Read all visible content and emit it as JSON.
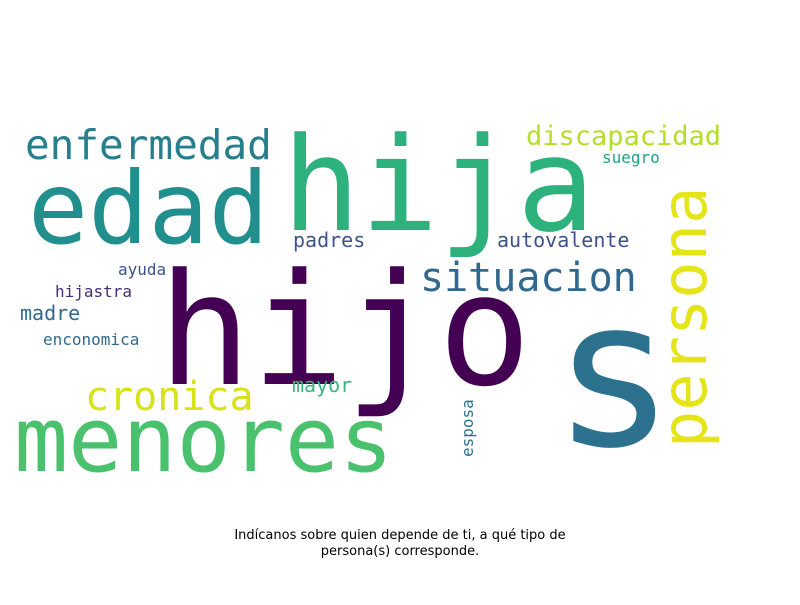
{
  "caption": {
    "line1": "Indícanos sobre quien depende de ti, a qué tipo de",
    "line2": "persona(s) corresponde."
  },
  "chart_data": {
    "type": "wordcloud",
    "words": [
      {
        "text": "s",
        "weight": 1.0,
        "color": "#2c728e",
        "orientation": "horizontal"
      },
      {
        "text": "hijo",
        "weight": 0.95,
        "color": "#440154",
        "orientation": "horizontal"
      },
      {
        "text": "hija",
        "weight": 0.78,
        "color": "#2db27d",
        "orientation": "horizontal"
      },
      {
        "text": "edad",
        "weight": 0.62,
        "color": "#218f8d",
        "orientation": "horizontal"
      },
      {
        "text": "menores",
        "weight": 0.58,
        "color": "#4ac16d",
        "orientation": "horizontal"
      },
      {
        "text": "persona",
        "weight": 0.42,
        "color": "#e5e419",
        "orientation": "vertical"
      },
      {
        "text": "enfermedad",
        "weight": 0.3,
        "color": "#277f8e",
        "orientation": "horizontal"
      },
      {
        "text": "situacion",
        "weight": 0.3,
        "color": "#31688e",
        "orientation": "horizontal"
      },
      {
        "text": "cronica",
        "weight": 0.28,
        "color": "#d8e219",
        "orientation": "horizontal"
      },
      {
        "text": "discapacidad",
        "weight": 0.2,
        "color": "#b5de2b",
        "orientation": "horizontal"
      },
      {
        "text": "autovalente",
        "weight": 0.15,
        "color": "#3b528b",
        "orientation": "horizontal"
      },
      {
        "text": "padres",
        "weight": 0.14,
        "color": "#3b528b",
        "orientation": "horizontal"
      },
      {
        "text": "mayor",
        "weight": 0.14,
        "color": "#35b779",
        "orientation": "horizontal"
      },
      {
        "text": "madre",
        "weight": 0.14,
        "color": "#31688e",
        "orientation": "horizontal"
      },
      {
        "text": "hijastra",
        "weight": 0.11,
        "color": "#472c7a",
        "orientation": "horizontal"
      },
      {
        "text": "ayuda",
        "weight": 0.11,
        "color": "#3b528b",
        "orientation": "horizontal"
      },
      {
        "text": "suegro",
        "weight": 0.1,
        "color": "#20a486",
        "orientation": "horizontal"
      },
      {
        "text": "enconomica",
        "weight": 0.1,
        "color": "#31688e",
        "orientation": "horizontal"
      },
      {
        "text": "esposa",
        "weight": 0.1,
        "color": "#2c728e",
        "orientation": "vertical"
      }
    ]
  }
}
